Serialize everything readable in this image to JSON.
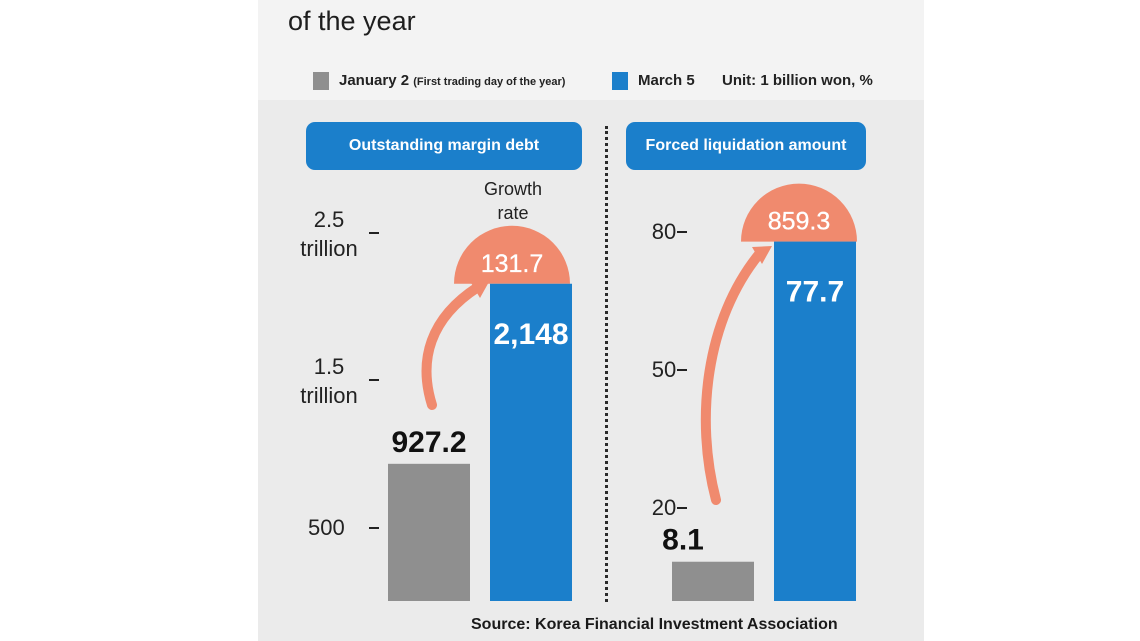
{
  "header": {
    "title_fragment": "of the year"
  },
  "legend": {
    "jan_label": "January 2",
    "jan_note": "(First trading day of the year)",
    "mar_label": "March 5",
    "unit": "Unit: 1 billion won, %"
  },
  "source": "Source: Korea Financial Investment Association",
  "colors": {
    "gray": "#8f8f8f",
    "blue": "#1b7fcb",
    "coral": "#f08a6e",
    "panel": "#ebebeb"
  },
  "chart_data": [
    {
      "type": "bar",
      "title": "Outstanding margin debt",
      "categories": [
        "January 2",
        "March 5"
      ],
      "values": [
        927.2,
        2148
      ],
      "value_labels": [
        "927.2",
        "2,148"
      ],
      "y_ticks": [
        {
          "value": 500,
          "lines": [
            "500"
          ]
        },
        {
          "value": 1500,
          "lines": [
            "1.5",
            "trillion"
          ]
        },
        {
          "value": 2500,
          "lines": [
            "2.5",
            "trillion"
          ]
        }
      ],
      "growth_label": [
        "Growth",
        "rate"
      ],
      "growth_rate": 131.7,
      "growth_rate_label": "131.7"
    },
    {
      "type": "bar",
      "title": "Forced liquidation amount",
      "categories": [
        "January 2",
        "March 5"
      ],
      "values": [
        8.1,
        77.7
      ],
      "value_labels": [
        "8.1",
        "77.7"
      ],
      "y_ticks": [
        {
          "value": 20,
          "lines": [
            "20"
          ]
        },
        {
          "value": 50,
          "lines": [
            "50"
          ]
        },
        {
          "value": 80,
          "lines": [
            "80"
          ]
        }
      ],
      "growth_rate": 859.3,
      "growth_rate_label": "859.3"
    }
  ]
}
